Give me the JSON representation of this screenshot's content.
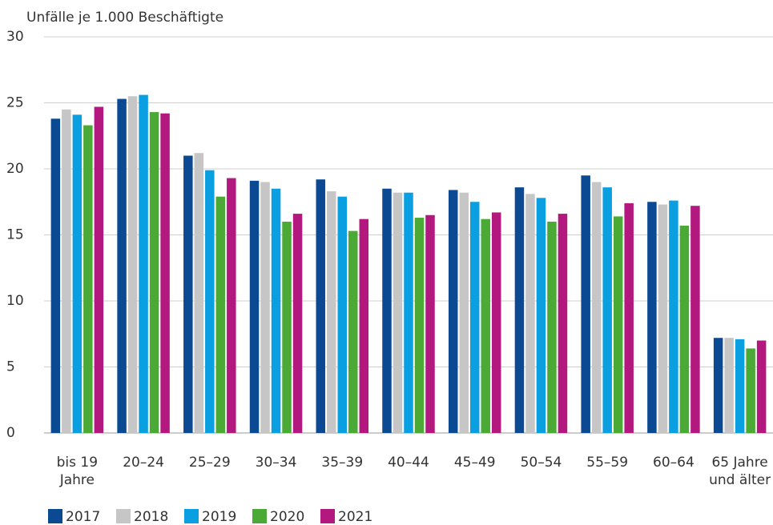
{
  "chart_data": {
    "type": "bar",
    "y_label": "Unfälle je 1.000 Beschäftigte",
    "categories": [
      "bis 19 Jahre",
      "20–24",
      "25–29",
      "30–34",
      "35–39",
      "40–44",
      "45–49",
      "50–54",
      "55–59",
      "60–64",
      "65 Jahre und älter"
    ],
    "series": [
      {
        "name": "2017",
        "color": "#0b4a92",
        "values": [
          23.8,
          25.3,
          21.0,
          19.1,
          19.2,
          18.5,
          18.4,
          18.6,
          19.5,
          17.5,
          7.2
        ]
      },
      {
        "name": "2018",
        "color": "#c6c6c6",
        "values": [
          24.5,
          25.5,
          21.2,
          19.0,
          18.3,
          18.2,
          18.2,
          18.1,
          19.0,
          17.3,
          7.2
        ]
      },
      {
        "name": "2019",
        "color": "#0a9fe1",
        "values": [
          24.1,
          25.6,
          19.9,
          18.5,
          17.9,
          18.2,
          17.5,
          17.8,
          18.6,
          17.6,
          7.1
        ]
      },
      {
        "name": "2020",
        "color": "#4ba935",
        "values": [
          23.3,
          24.3,
          17.9,
          16.0,
          15.3,
          16.3,
          16.2,
          16.0,
          16.4,
          15.7,
          6.4
        ]
      },
      {
        "name": "2021",
        "color": "#b3187e",
        "values": [
          24.7,
          24.2,
          19.3,
          16.6,
          16.2,
          16.5,
          16.7,
          16.6,
          17.4,
          17.2,
          7.0
        ]
      }
    ],
    "ylim": [
      0,
      30
    ],
    "yticks": [
      0,
      5,
      10,
      15,
      20,
      25,
      30
    ],
    "grid": true
  }
}
